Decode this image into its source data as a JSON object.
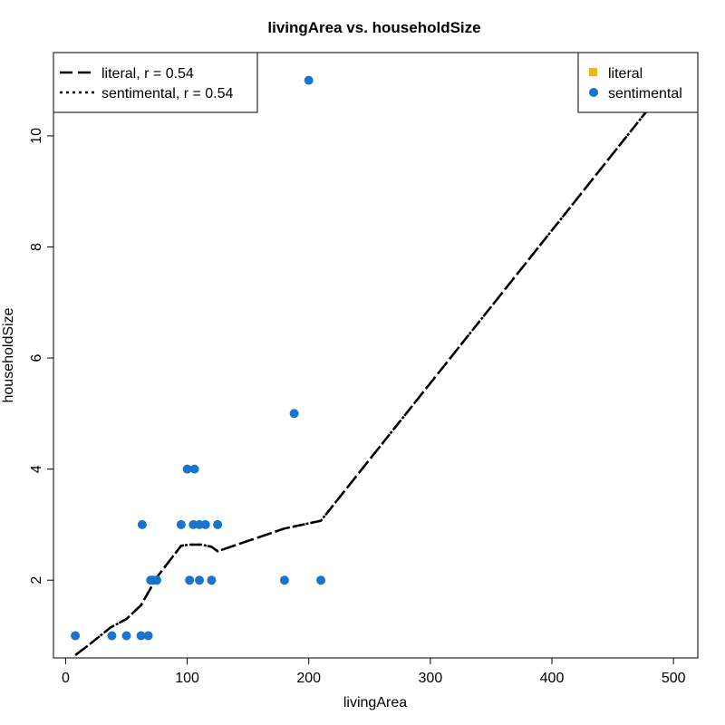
{
  "chart_data": {
    "type": "scatter",
    "title": "livingArea vs. householdSize",
    "xlabel": "livingArea",
    "ylabel": "householdSize",
    "xlim": [
      -10,
      520
    ],
    "ylim": [
      0.6,
      11.5
    ],
    "x_ticks": [
      0,
      100,
      200,
      300,
      400,
      500
    ],
    "y_ticks": [
      2,
      4,
      6,
      8,
      10
    ],
    "colors": {
      "literal": "#F5B700",
      "sentimental": "#1874CD",
      "line": "#000000"
    },
    "point_legend": {
      "position": "top-right",
      "entries": [
        {
          "label": "literal",
          "marker": "square",
          "color": "#F5B700"
        },
        {
          "label": "sentimental",
          "marker": "circle",
          "color": "#1874CD"
        }
      ]
    },
    "line_legend": {
      "position": "top-left",
      "entries": [
        {
          "label": "literal, r = 0.54",
          "style": "long-dash"
        },
        {
          "label": "sentimental, r = 0.54",
          "style": "dotted"
        }
      ]
    },
    "series": [
      {
        "name": "sentimental",
        "marker": "circle",
        "points": [
          [
            8,
            1
          ],
          [
            38,
            1
          ],
          [
            50,
            1
          ],
          [
            62,
            1
          ],
          [
            68,
            1
          ],
          [
            63,
            3
          ],
          [
            70,
            2
          ],
          [
            72,
            2
          ],
          [
            75,
            2
          ],
          [
            95,
            3
          ],
          [
            100,
            4
          ],
          [
            102,
            2
          ],
          [
            105,
            3
          ],
          [
            106,
            4
          ],
          [
            110,
            2
          ],
          [
            110,
            3
          ],
          [
            115,
            3
          ],
          [
            120,
            2
          ],
          [
            125,
            3
          ],
          [
            180,
            2
          ],
          [
            188,
            5
          ],
          [
            200,
            11
          ],
          [
            210,
            2
          ]
        ]
      }
    ],
    "trend_lines": [
      {
        "name": "literal, r = 0.54",
        "style": "long-dash",
        "points": [
          [
            8,
            0.65
          ],
          [
            20,
            0.85
          ],
          [
            37,
            1.15
          ],
          [
            50,
            1.3
          ],
          [
            62,
            1.55
          ],
          [
            75,
            2.05
          ],
          [
            95,
            2.62
          ],
          [
            102,
            2.64
          ],
          [
            112,
            2.64
          ],
          [
            120,
            2.6
          ],
          [
            125,
            2.52
          ],
          [
            180,
            2.93
          ],
          [
            210,
            3.07
          ],
          [
            480,
            10.5
          ]
        ]
      },
      {
        "name": "sentimental, r = 0.54",
        "style": "dotted",
        "points": [
          [
            8,
            0.65
          ],
          [
            20,
            0.85
          ],
          [
            37,
            1.15
          ],
          [
            50,
            1.3
          ],
          [
            62,
            1.55
          ],
          [
            75,
            2.05
          ],
          [
            95,
            2.62
          ],
          [
            102,
            2.64
          ],
          [
            112,
            2.64
          ],
          [
            120,
            2.6
          ],
          [
            125,
            2.52
          ],
          [
            180,
            2.93
          ],
          [
            210,
            3.07
          ],
          [
            480,
            10.5
          ]
        ]
      }
    ]
  }
}
